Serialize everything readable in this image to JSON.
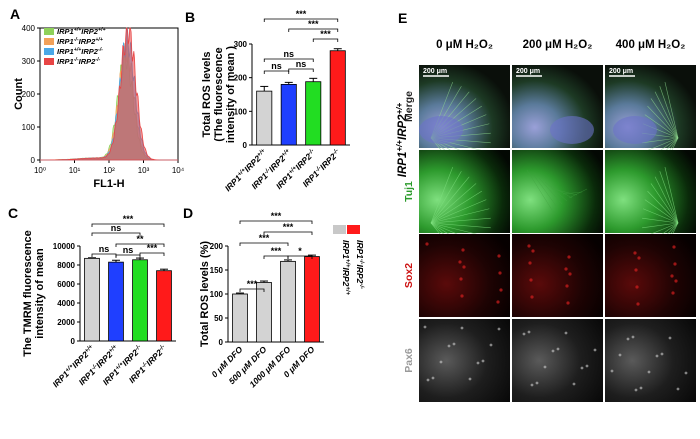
{
  "panels": {
    "A": "A",
    "B": "B",
    "C": "C",
    "D": "D",
    "E": "E"
  },
  "genotype_wt": "IRP1+/+IRP2+/+",
  "chart_data": [
    {
      "id": "A",
      "type": "line",
      "xlabel": "FL1-H",
      "ylabel": "Count",
      "xscale": "log",
      "xlim": [
        1,
        10000
      ],
      "ylim": [
        0,
        400
      ],
      "xticks": [
        "10⁰",
        "10¹",
        "10²",
        "10³",
        "10⁴"
      ],
      "yticks": [
        0,
        100,
        200,
        300,
        400
      ],
      "series": [
        {
          "name": "IRP1+/+IRP2+/+",
          "color": "#8fd15a",
          "peak_x": 300,
          "peak_y": 310
        },
        {
          "name": "IRP1-/-IRP2+/+",
          "color": "#f2a15a",
          "peak_x": 320,
          "peak_y": 330
        },
        {
          "name": "IRP1+/+IRP2-/-",
          "color": "#4aa8e8",
          "peak_x": 340,
          "peak_y": 360
        },
        {
          "name": "IRP1-/-IRP2-/-",
          "color": "#e84545",
          "peak_x": 360,
          "peak_y": 395
        }
      ]
    },
    {
      "id": "B",
      "type": "bar",
      "ylabel": [
        "Total ROS levels",
        "(The fluorescence",
        "intensity of mean )"
      ],
      "ylim": [
        0,
        300
      ],
      "yticks": [
        0,
        100,
        200,
        300
      ],
      "categories": [
        "IRP1+/+IRP2+/+",
        "IRP1-/-IRP2+/+",
        "IRP1+/+IRP2-/-",
        "IRP1-/-IRP2-/-"
      ],
      "values": [
        160,
        180,
        188,
        280
      ],
      "errors": [
        14,
        6,
        10,
        6
      ],
      "colors": [
        "#d3d3d3",
        "#1f3fff",
        "#22dd22",
        "#ff1a1a"
      ],
      "brackets": [
        {
          "a": 0,
          "b": 3,
          "label": "***"
        },
        {
          "a": 1,
          "b": 3,
          "label": "***"
        },
        {
          "a": 2,
          "b": 3,
          "label": "***"
        },
        {
          "a": 0,
          "b": 2,
          "label": "ns"
        },
        {
          "a": 0,
          "b": 1,
          "label": "ns"
        },
        {
          "a": 1,
          "b": 2,
          "label": "ns"
        }
      ]
    },
    {
      "id": "C",
      "type": "bar",
      "ylabel": [
        "The TMRM fluorescence",
        "intensity of mean"
      ],
      "ylim": [
        0,
        10000
      ],
      "yticks": [
        0,
        2000,
        4000,
        6000,
        8000,
        10000
      ],
      "categories": [
        "IRP1+/+IRP2+/+",
        "IRP1-/-IRP2+/+",
        "IRP1+/+IRP2-/-",
        "IRP1-/-IRP2-/-"
      ],
      "values": [
        8700,
        8300,
        8550,
        7400
      ],
      "errors": [
        60,
        200,
        180,
        160
      ],
      "colors": [
        "#d3d3d3",
        "#1f3fff",
        "#22dd22",
        "#ff1a1a"
      ],
      "brackets": [
        {
          "a": 0,
          "b": 3,
          "label": "***"
        },
        {
          "a": 0,
          "b": 2,
          "label": "ns"
        },
        {
          "a": 1,
          "b": 3,
          "label": "**"
        },
        {
          "a": 2,
          "b": 3,
          "label": "***"
        },
        {
          "a": 0,
          "b": 1,
          "label": "ns"
        },
        {
          "a": 1,
          "b": 2,
          "label": "ns"
        }
      ]
    },
    {
      "id": "D",
      "type": "bar",
      "ylabel": [
        "Total ROS levels (%)"
      ],
      "ylim": [
        0,
        200
      ],
      "yticks": [
        0,
        50,
        100,
        150,
        200
      ],
      "categories": [
        "0 μM DFO",
        "500 μM DFO",
        "1000 μM DFO",
        "0 μM DFO"
      ],
      "values": [
        100,
        124,
        168,
        178
      ],
      "errors": [
        2,
        3,
        3,
        3
      ],
      "colors": [
        "#d3d3d3",
        "#d3d3d3",
        "#d3d3d3",
        "#ff1a1a"
      ],
      "legend": [
        {
          "name": "IRP1+/+IRP2+/+",
          "color": "#c8c8c8"
        },
        {
          "name": "IRP1-/-IRP2-/-",
          "color": "#ff1a1a"
        }
      ],
      "brackets": [
        {
          "a": 0,
          "b": 3,
          "label": "***"
        },
        {
          "a": 1,
          "b": 3,
          "label": "***"
        },
        {
          "a": 0,
          "b": 2,
          "label": "***"
        },
        {
          "a": 1,
          "b": 2,
          "label": "***"
        },
        {
          "a": 0,
          "b": 1,
          "label": "***"
        },
        {
          "a": 2,
          "b": 3,
          "label": "*"
        }
      ]
    }
  ],
  "panel_E": {
    "columns": [
      "0 μM H₂O₂",
      "200 μM H₂O₂",
      "400 μM H₂O₂"
    ],
    "rows": [
      {
        "label": "Merge",
        "color": "#222222"
      },
      {
        "label": "Tuj1",
        "color": "#2a9a2a"
      },
      {
        "label": "Sox2",
        "color": "#cc1111"
      },
      {
        "label": "Pax6",
        "color": "#9a9a9a"
      }
    ],
    "scalebar": "200 μm",
    "side_label": "IRP1+/+IRP2+/+"
  }
}
